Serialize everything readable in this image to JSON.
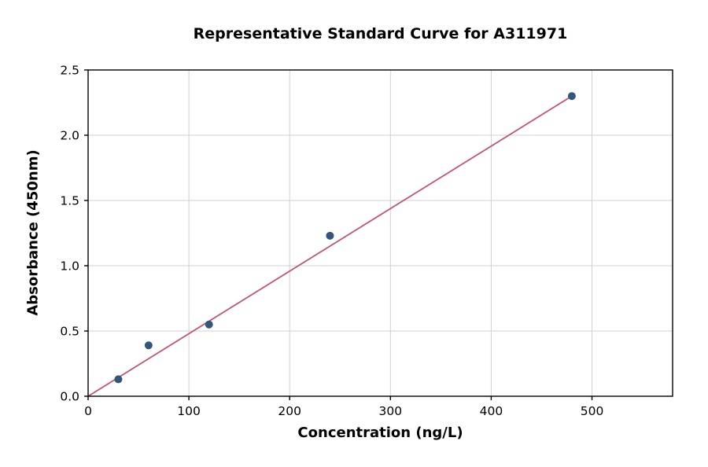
{
  "figure": {
    "background": "#ffffff"
  },
  "chart_data": {
    "type": "scatter",
    "title": "Representative Standard Curve for A311971",
    "xlabel": "Concentration (ng/L)",
    "ylabel": "Absorbance (450nm)",
    "xlim": [
      0,
      580
    ],
    "ylim": [
      0,
      2.5
    ],
    "xticks": [
      0,
      100,
      200,
      300,
      400,
      500
    ],
    "xtick_labels": [
      "0",
      "100",
      "200",
      "300",
      "400",
      "500"
    ],
    "yticks": [
      0,
      0.5,
      1.0,
      1.5,
      2.0,
      2.5
    ],
    "ytick_labels": [
      "0.0",
      "0.5",
      "1.0",
      "1.5",
      "2.0",
      "2.5"
    ],
    "grid": true,
    "grid_color": "#d0d0d0",
    "frame_color": "#000000",
    "legend_position": "none",
    "series": [
      {
        "name": "linear-fit",
        "type": "line",
        "color": "#c25574",
        "points": [
          {
            "x": 0,
            "y": 0.0
          },
          {
            "x": 480,
            "y": 2.3
          }
        ]
      },
      {
        "name": "standards",
        "type": "scatter",
        "color": "#33577b",
        "marker_radius": 5,
        "points": [
          {
            "x": 30,
            "y": 0.13
          },
          {
            "x": 60,
            "y": 0.39
          },
          {
            "x": 120,
            "y": 0.55
          },
          {
            "x": 240,
            "y": 1.23
          },
          {
            "x": 480,
            "y": 2.3
          }
        ]
      }
    ]
  }
}
